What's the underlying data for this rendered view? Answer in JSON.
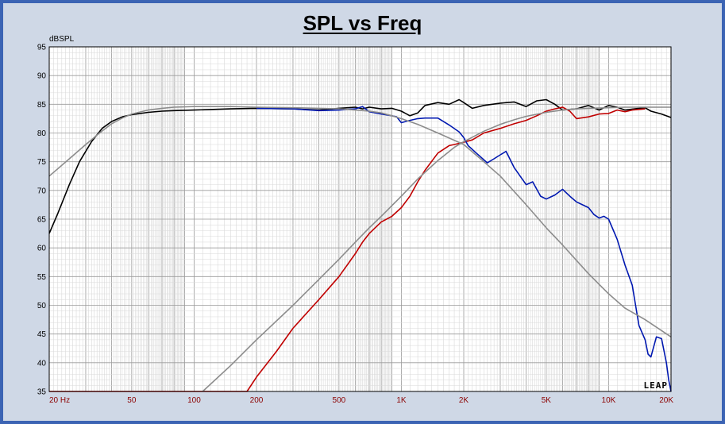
{
  "chart_data": {
    "type": "line",
    "title": "SPL vs Freq",
    "ylabel": "dBSPL",
    "xlabel": "",
    "xscale": "log",
    "xlim": [
      20,
      20000
    ],
    "ylim": [
      35,
      95
    ],
    "yticks": [
      95,
      90,
      85,
      80,
      75,
      70,
      65,
      60,
      55,
      50,
      45,
      40,
      35
    ],
    "xticks": [
      {
        "value": 20,
        "label": "20  Hz"
      },
      {
        "value": 50,
        "label": "50"
      },
      {
        "value": 100,
        "label": "100"
      },
      {
        "value": 200,
        "label": "200"
      },
      {
        "value": 500,
        "label": "500"
      },
      {
        "value": 1000,
        "label": "1K"
      },
      {
        "value": 2000,
        "label": "2K"
      },
      {
        "value": 5000,
        "label": "5K"
      },
      {
        "value": 10000,
        "label": "10K"
      },
      {
        "value": 20000,
        "label": "20K"
      }
    ],
    "grid": true,
    "logo_text": "LEAP",
    "series": [
      {
        "color": "#000000",
        "x": [
          20,
          22,
          25,
          28,
          32,
          36,
          40,
          45,
          50,
          60,
          70,
          80,
          100,
          150,
          200,
          300,
          400,
          500,
          600,
          650,
          700,
          800,
          900,
          1000,
          1100,
          1200,
          1300,
          1500,
          1700,
          1900,
          2000,
          2200,
          2500,
          3000,
          3500,
          4000,
          4500,
          5000,
          5500,
          6000,
          7000,
          8000,
          9000,
          10000,
          11000,
          12000,
          14000,
          15000,
          16000,
          18000,
          20000
        ],
        "y": [
          62.5,
          66,
          71,
          75,
          78.5,
          80.8,
          82,
          82.8,
          83.2,
          83.6,
          83.8,
          83.9,
          84.0,
          84.2,
          84.3,
          84.2,
          84.0,
          84.3,
          84.5,
          84.2,
          84.5,
          84.2,
          84.3,
          83.8,
          83.0,
          83.5,
          84.8,
          85.3,
          85.0,
          85.8,
          85.3,
          84.3,
          84.8,
          85.2,
          85.4,
          84.6,
          85.6,
          85.8,
          85.0,
          84.0,
          84.2,
          84.8,
          84.0,
          84.8,
          84.5,
          84.0,
          84.3,
          84.4,
          83.8,
          83.3,
          82.7
        ]
      },
      {
        "color": "#c00000",
        "x": [
          20,
          180,
          200,
          250,
          300,
          400,
          500,
          600,
          650,
          700,
          800,
          900,
          1000,
          1100,
          1200,
          1300,
          1500,
          1700,
          1800,
          2000,
          2200,
          2500,
          3000,
          3500,
          4000,
          4500,
          5000,
          5500,
          6000,
          6500,
          7000,
          8000,
          9000,
          10000,
          11000,
          12000,
          13000,
          14000,
          15000
        ],
        "y": [
          35,
          35,
          37.5,
          42,
          46,
          51,
          55,
          59,
          61,
          62.5,
          64.5,
          65.5,
          67,
          69,
          71.5,
          73.5,
          76.5,
          77.8,
          78.0,
          78.4,
          78.8,
          80.0,
          80.8,
          81.6,
          82.2,
          83.0,
          83.8,
          84.2,
          84.5,
          83.8,
          82.5,
          82.8,
          83.3,
          83.4,
          84.0,
          83.7,
          84.0,
          84.1,
          84.2
        ]
      },
      {
        "color": "#0018b0",
        "x": [
          200,
          300,
          400,
          500,
          600,
          650,
          700,
          800,
          900,
          950,
          1000,
          1100,
          1200,
          1300,
          1500,
          1700,
          1900,
          2000,
          2100,
          2300,
          2600,
          2800,
          3000,
          3200,
          3500,
          4000,
          4300,
          4700,
          5000,
          5500,
          6000,
          6500,
          7000,
          8000,
          8500,
          9000,
          9500,
          10000,
          11000,
          12000,
          13000,
          14000,
          15000,
          15500,
          16000,
          17000,
          18000,
          19000,
          19500,
          20000
        ],
        "y": [
          84.3,
          84.2,
          83.9,
          84.0,
          84.2,
          84.6,
          83.7,
          83.3,
          83.0,
          82.8,
          81.8,
          82.2,
          82.5,
          82.6,
          82.6,
          81.4,
          80.2,
          79.2,
          77.8,
          76.5,
          74.8,
          75.5,
          76.2,
          76.8,
          74.0,
          71.0,
          71.5,
          69.0,
          68.5,
          69.2,
          70.2,
          69.0,
          68.0,
          67.0,
          65.8,
          65.2,
          65.5,
          65.0,
          61.5,
          57.0,
          53.5,
          46.5,
          44.0,
          41.5,
          41.0,
          44.5,
          44.2,
          40.0,
          37.0,
          35.0
        ]
      },
      {
        "color": "#8c8c8c",
        "x": [
          20,
          25,
          30,
          35,
          40,
          45,
          50,
          60,
          70,
          80,
          100,
          150,
          200,
          300,
          400,
          500,
          600,
          700,
          800,
          900,
          1000,
          1200,
          1500,
          2000,
          2500,
          3000,
          4000,
          5000,
          6000,
          8000,
          10000,
          12000,
          15000,
          20000
        ],
        "y": [
          72.5,
          75.5,
          78,
          80,
          81.6,
          82.6,
          83.3,
          84.0,
          84.3,
          84.5,
          84.6,
          84.6,
          84.5,
          84.4,
          84.3,
          84.2,
          84.0,
          83.8,
          83.5,
          83.0,
          82.5,
          81.5,
          80.0,
          78.0,
          75.0,
          72.5,
          67.5,
          63.5,
          60.5,
          55.5,
          52.0,
          49.5,
          47.5,
          44.5
        ]
      },
      {
        "color": "#8c8c8c",
        "x": [
          110,
          150,
          200,
          300,
          400,
          500,
          600,
          700,
          800,
          1000,
          1200,
          1500,
          1800,
          2000,
          2500,
          3000,
          3500,
          4000,
          5000,
          6000,
          7000,
          8000,
          10000,
          12000,
          15000,
          20000
        ],
        "y": [
          35,
          39.5,
          44,
          50,
          54.5,
          58,
          61,
          63.5,
          65.5,
          69,
          72,
          75.2,
          77.5,
          78.5,
          80.3,
          81.5,
          82.3,
          82.9,
          83.6,
          84.0,
          84.2,
          84.3,
          84.4,
          84.5,
          84.5,
          84.5
        ]
      }
    ]
  }
}
